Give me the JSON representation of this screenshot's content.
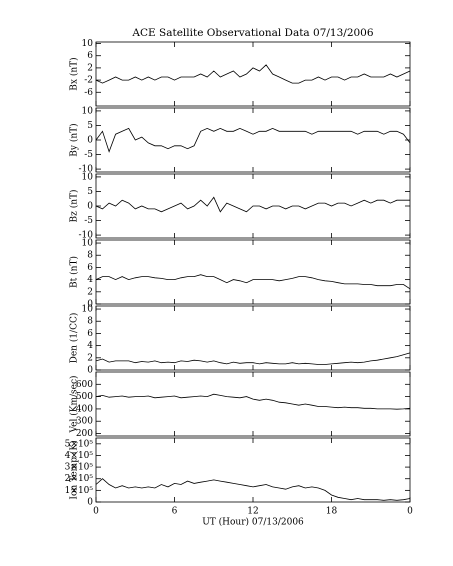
{
  "chart_data": [
    {
      "type": "line",
      "title": "ACE Satellite Observational Data   07/13/2006",
      "ylabel": "Bx (nT)",
      "color": "#000000",
      "x": [
        0,
        0.5,
        1,
        1.5,
        2,
        2.5,
        3,
        3.5,
        4,
        4.5,
        5,
        5.5,
        6,
        6.5,
        7,
        7.5,
        8,
        8.5,
        9,
        9.5,
        10,
        10.5,
        11,
        11.5,
        12,
        12.5,
        13,
        13.5,
        14,
        14.5,
        15,
        15.5,
        16,
        16.5,
        17,
        17.5,
        18,
        18.5,
        19,
        19.5,
        20,
        20.5,
        21,
        21.5,
        22,
        22.5,
        23,
        23.5,
        24
      ],
      "values": [
        -2,
        -3,
        -2,
        -1,
        -2,
        -2,
        -1,
        -2,
        -1,
        -2,
        -1,
        -1,
        -2,
        -1,
        -1,
        -1,
        0,
        -1,
        1,
        -1,
        0,
        1,
        -1,
        0,
        2,
        1,
        3,
        0,
        -1,
        -2,
        -3,
        -3,
        -2,
        -2,
        -1,
        -2,
        -1,
        -1,
        -2,
        -1,
        -1,
        0,
        -1,
        -1,
        -1,
        0,
        -1,
        0,
        1
      ],
      "xlim": [
        0,
        24
      ],
      "xticks": [
        0,
        6,
        12,
        18,
        {
          "value": 24,
          "label": "0"
        }
      ],
      "ylim": [
        -10.5,
        10.5
      ],
      "yticks": [
        10,
        6,
        2,
        -2,
        -6
      ]
    },
    {
      "type": "line",
      "ylabel": "By (nT)",
      "color": "#000000",
      "x": [
        0,
        0.5,
        1,
        1.5,
        2,
        2.5,
        3,
        3.5,
        4,
        4.5,
        5,
        5.5,
        6,
        6.5,
        7,
        7.5,
        8,
        8.5,
        9,
        9.5,
        10,
        10.5,
        11,
        11.5,
        12,
        12.5,
        13,
        13.5,
        14,
        14.5,
        15,
        15.5,
        16,
        16.5,
        17,
        17.5,
        18,
        18.5,
        19,
        19.5,
        20,
        20.5,
        21,
        21.5,
        22,
        22.5,
        23,
        23.5,
        24
      ],
      "values": [
        0,
        3,
        -4,
        2,
        3,
        4,
        0,
        1,
        -1,
        -2,
        -2,
        -3,
        -2,
        -2,
        -3,
        -2,
        3,
        4,
        3,
        4,
        3,
        3,
        4,
        3,
        2,
        3,
        3,
        4,
        3,
        3,
        3,
        3,
        3,
        2,
        3,
        3,
        3,
        3,
        3,
        3,
        2,
        3,
        3,
        3,
        2,
        3,
        3,
        2,
        -1
      ],
      "xlim": [
        0,
        24
      ],
      "xticks": [
        0,
        6,
        12,
        18,
        {
          "value": 24,
          "label": "0"
        }
      ],
      "ylim": [
        -11,
        11
      ],
      "yticks": [
        10,
        5,
        0,
        -5,
        -10
      ]
    },
    {
      "type": "line",
      "ylabel": "Bz (nT)",
      "color": "#000000",
      "x": [
        0,
        0.5,
        1,
        1.5,
        2,
        2.5,
        3,
        3.5,
        4,
        4.5,
        5,
        5.5,
        6,
        6.5,
        7,
        7.5,
        8,
        8.5,
        9,
        9.5,
        10,
        10.5,
        11,
        11.5,
        12,
        12.5,
        13,
        13.5,
        14,
        14.5,
        15,
        15.5,
        16,
        16.5,
        17,
        17.5,
        18,
        18.5,
        19,
        19.5,
        20,
        20.5,
        21,
        21.5,
        22,
        22.5,
        23,
        23.5,
        24
      ],
      "values": [
        0,
        -1,
        1,
        0,
        2,
        1,
        -1,
        0,
        -1,
        -1,
        -2,
        -1,
        0,
        1,
        -1,
        0,
        2,
        0,
        3,
        -2,
        1,
        0,
        -1,
        -2,
        0,
        0,
        -1,
        0,
        0,
        -1,
        0,
        0,
        -1,
        0,
        1,
        1,
        0,
        1,
        1,
        0,
        1,
        2,
        1,
        2,
        2,
        1,
        2,
        2,
        2
      ],
      "xlim": [
        0,
        24
      ],
      "xticks": [
        0,
        6,
        12,
        18,
        {
          "value": 24,
          "label": "0"
        }
      ],
      "ylim": [
        -11,
        11
      ],
      "yticks": [
        10,
        5,
        0,
        -5,
        -10
      ]
    },
    {
      "type": "line",
      "ylabel": "Bt (nT)",
      "color": "#000000",
      "x": [
        0,
        0.5,
        1,
        1.5,
        2,
        2.5,
        3,
        3.5,
        4,
        4.5,
        5,
        5.5,
        6,
        6.5,
        7,
        7.5,
        8,
        8.5,
        9,
        9.5,
        10,
        10.5,
        11,
        11.5,
        12,
        12.5,
        13,
        13.5,
        14,
        14.5,
        15,
        15.5,
        16,
        16.5,
        17,
        17.5,
        18,
        18.5,
        19,
        19.5,
        20,
        20.5,
        21,
        21.5,
        22,
        22.5,
        23,
        23.5,
        24
      ],
      "values": [
        4,
        4.5,
        4.5,
        4,
        4.5,
        4,
        4.3,
        4.5,
        4.5,
        4.3,
        4.2,
        4,
        4,
        4.3,
        4.5,
        4.5,
        4.8,
        4.5,
        4.5,
        4,
        3.5,
        4,
        3.8,
        3.5,
        4,
        4,
        4,
        4,
        3.8,
        4,
        4.2,
        4.5,
        4.5,
        4.3,
        4,
        3.8,
        3.7,
        3.5,
        3.3,
        3.3,
        3.3,
        3.2,
        3.2,
        3,
        3,
        3,
        3.2,
        3.2,
        2.5
      ],
      "xlim": [
        0,
        24
      ],
      "xticks": [
        0,
        6,
        12,
        18,
        {
          "value": 24,
          "label": "0"
        }
      ],
      "ylim": [
        0,
        10.5
      ],
      "yticks": [
        10,
        8,
        6,
        4,
        2,
        0
      ]
    },
    {
      "type": "line",
      "ylabel": "Den (1/CC)",
      "color": "#000000",
      "x": [
        0,
        0.5,
        1,
        1.5,
        2,
        2.5,
        3,
        3.5,
        4,
        4.5,
        5,
        5.5,
        6,
        6.5,
        7,
        7.5,
        8,
        8.5,
        9,
        9.5,
        10,
        10.5,
        11,
        11.5,
        12,
        12.5,
        13,
        13.5,
        14,
        14.5,
        15,
        15.5,
        16,
        16.5,
        17,
        17.5,
        18,
        18.5,
        19,
        19.5,
        20,
        20.5,
        21,
        21.5,
        22,
        22.5,
        23,
        23.5,
        24
      ],
      "values": [
        1.5,
        1.8,
        1.3,
        1.5,
        1.5,
        1.5,
        1.2,
        1.4,
        1.3,
        1.5,
        1.2,
        1.3,
        1.2,
        1.5,
        1.4,
        1.6,
        1.5,
        1.3,
        1.5,
        1.2,
        1.0,
        1.3,
        1.1,
        1.2,
        1.2,
        1.0,
        1.2,
        1.1,
        1.0,
        1.0,
        1.2,
        1.0,
        1.1,
        1.0,
        0.9,
        0.9,
        1.0,
        1.1,
        1.2,
        1.3,
        1.2,
        1.3,
        1.5,
        1.6,
        1.8,
        2.0,
        2.2,
        2.5,
        2.8
      ],
      "xlim": [
        0,
        24
      ],
      "xticks": [
        0,
        6,
        12,
        18,
        {
          "value": 24,
          "label": "0"
        }
      ],
      "ylim": [
        0,
        10.5
      ],
      "yticks": [
        10,
        8,
        6,
        4,
        2,
        0
      ]
    },
    {
      "type": "line",
      "ylabel": "Vel (Km/sec)",
      "color": "#000000",
      "x": [
        0,
        0.5,
        1,
        1.5,
        2,
        2.5,
        3,
        3.5,
        4,
        4.5,
        5,
        5.5,
        6,
        6.5,
        7,
        7.5,
        8,
        8.5,
        9,
        9.5,
        10,
        10.5,
        11,
        11.5,
        12,
        12.5,
        13,
        13.5,
        14,
        14.5,
        15,
        15.5,
        16,
        16.5,
        17,
        17.5,
        18,
        18.5,
        19,
        19.5,
        20,
        20.5,
        21,
        21.5,
        22,
        22.5,
        23,
        23.5,
        24
      ],
      "values": [
        500,
        510,
        495,
        500,
        505,
        495,
        500,
        500,
        505,
        490,
        495,
        500,
        505,
        490,
        495,
        500,
        505,
        500,
        520,
        510,
        500,
        495,
        490,
        500,
        480,
        470,
        480,
        470,
        455,
        450,
        440,
        430,
        440,
        430,
        420,
        420,
        415,
        410,
        415,
        410,
        410,
        405,
        405,
        400,
        400,
        400,
        398,
        400,
        405
      ],
      "xlim": [
        0,
        24
      ],
      "xticks": [
        0,
        6,
        12,
        18,
        {
          "value": 24,
          "label": "0"
        }
      ],
      "ylim": [
        180,
        700
      ],
      "yticks": [
        600,
        500,
        400,
        300,
        200
      ]
    },
    {
      "type": "line",
      "ylabel": "Ion Temp (K)",
      "xlabel": "UT (Hour)   07/13/2006",
      "color": "#000000",
      "x": [
        0,
        0.5,
        1,
        1.5,
        2,
        2.5,
        3,
        3.5,
        4,
        4.5,
        5,
        5.5,
        6,
        6.5,
        7,
        7.5,
        8,
        8.5,
        9,
        9.5,
        10,
        10.5,
        11,
        11.5,
        12,
        12.5,
        13,
        13.5,
        14,
        14.5,
        15,
        15.5,
        16,
        16.5,
        17,
        17.5,
        18,
        18.5,
        19,
        19.5,
        20,
        20.5,
        21,
        21.5,
        22,
        22.5,
        23,
        23.5,
        24
      ],
      "values": [
        150000,
        200000,
        150000,
        120000,
        140000,
        120000,
        130000,
        120000,
        130000,
        120000,
        150000,
        130000,
        160000,
        150000,
        180000,
        160000,
        170000,
        180000,
        190000,
        180000,
        170000,
        160000,
        150000,
        140000,
        130000,
        140000,
        150000,
        130000,
        120000,
        110000,
        130000,
        140000,
        120000,
        130000,
        120000,
        100000,
        60000,
        40000,
        30000,
        20000,
        30000,
        20000,
        20000,
        20000,
        15000,
        20000,
        15000,
        20000,
        30000
      ],
      "xlim": [
        0,
        24
      ],
      "xticks": [
        0,
        6,
        12,
        18,
        {
          "value": 24,
          "label": "0"
        }
      ],
      "ylim": [
        0,
        550000
      ],
      "yticks": [
        {
          "value": 500000,
          "label": "5×10⁵"
        },
        {
          "value": 400000,
          "label": "4×10⁵"
        },
        {
          "value": 300000,
          "label": "3×10⁵"
        },
        {
          "value": 200000,
          "label": "2×10⁵"
        },
        {
          "value": 100000,
          "label": "1×10⁵"
        },
        0
      ]
    }
  ]
}
